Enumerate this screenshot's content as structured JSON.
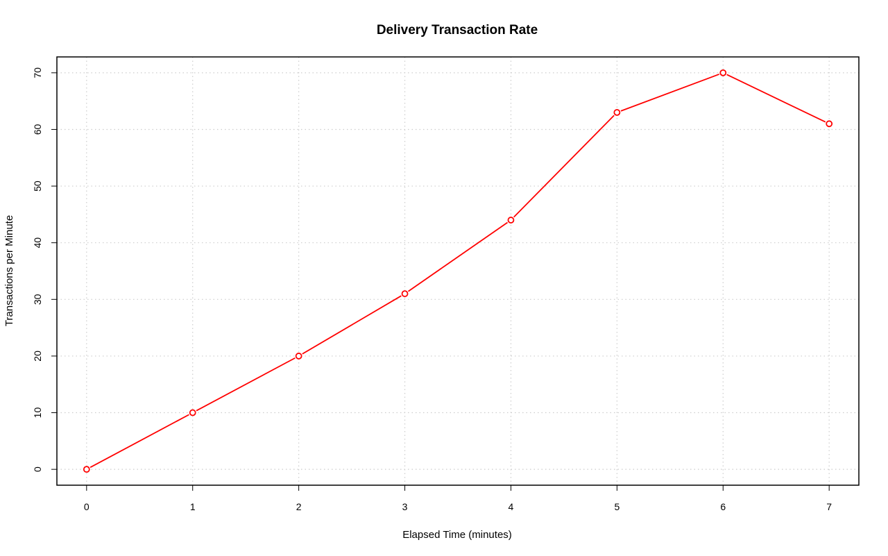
{
  "chart_data": {
    "type": "line",
    "title": "Delivery Transaction Rate",
    "xlabel": "Elapsed Time (minutes)",
    "ylabel": "Transactions per Minute",
    "x": [
      0,
      1,
      2,
      3,
      4,
      5,
      6,
      7
    ],
    "series": [
      {
        "values": [
          0,
          10,
          20,
          31,
          44,
          63,
          70,
          61
        ],
        "color": "#ff0000",
        "marker": "open-circle"
      }
    ],
    "xticks": [
      "0",
      "1",
      "2",
      "3",
      "4",
      "5",
      "6",
      "7"
    ],
    "yticks": [
      "0",
      "10",
      "20",
      "30",
      "40",
      "50",
      "60",
      "70"
    ],
    "xlim": [
      -0.28,
      7.28
    ],
    "ylim": [
      -2.8,
      72.8
    ],
    "grid": true,
    "grid_color": "#cccccc",
    "legend": false
  }
}
